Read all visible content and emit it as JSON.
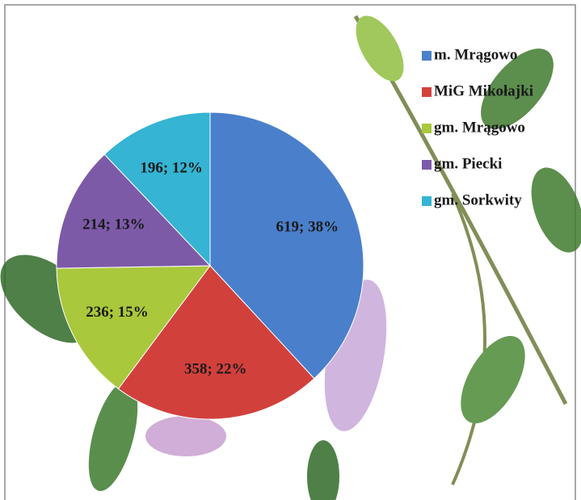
{
  "chart_data": {
    "type": "pie",
    "categories": [
      "m. Mrągowo",
      "MiG Mikołajki",
      "gm. Mrągowo",
      "gm. Piecki",
      "gm. Sorkwity"
    ],
    "values": [
      619,
      358,
      236,
      214,
      196
    ],
    "value_labels": [
      "619; 38%",
      "358; 22%",
      "236; 15%",
      "214; 13%",
      "196; 12%"
    ],
    "colors": [
      "#4a7fcb",
      "#d2403c",
      "#a9c83c",
      "#7d5aa8",
      "#35b4d3"
    ],
    "legend": "top-right"
  }
}
